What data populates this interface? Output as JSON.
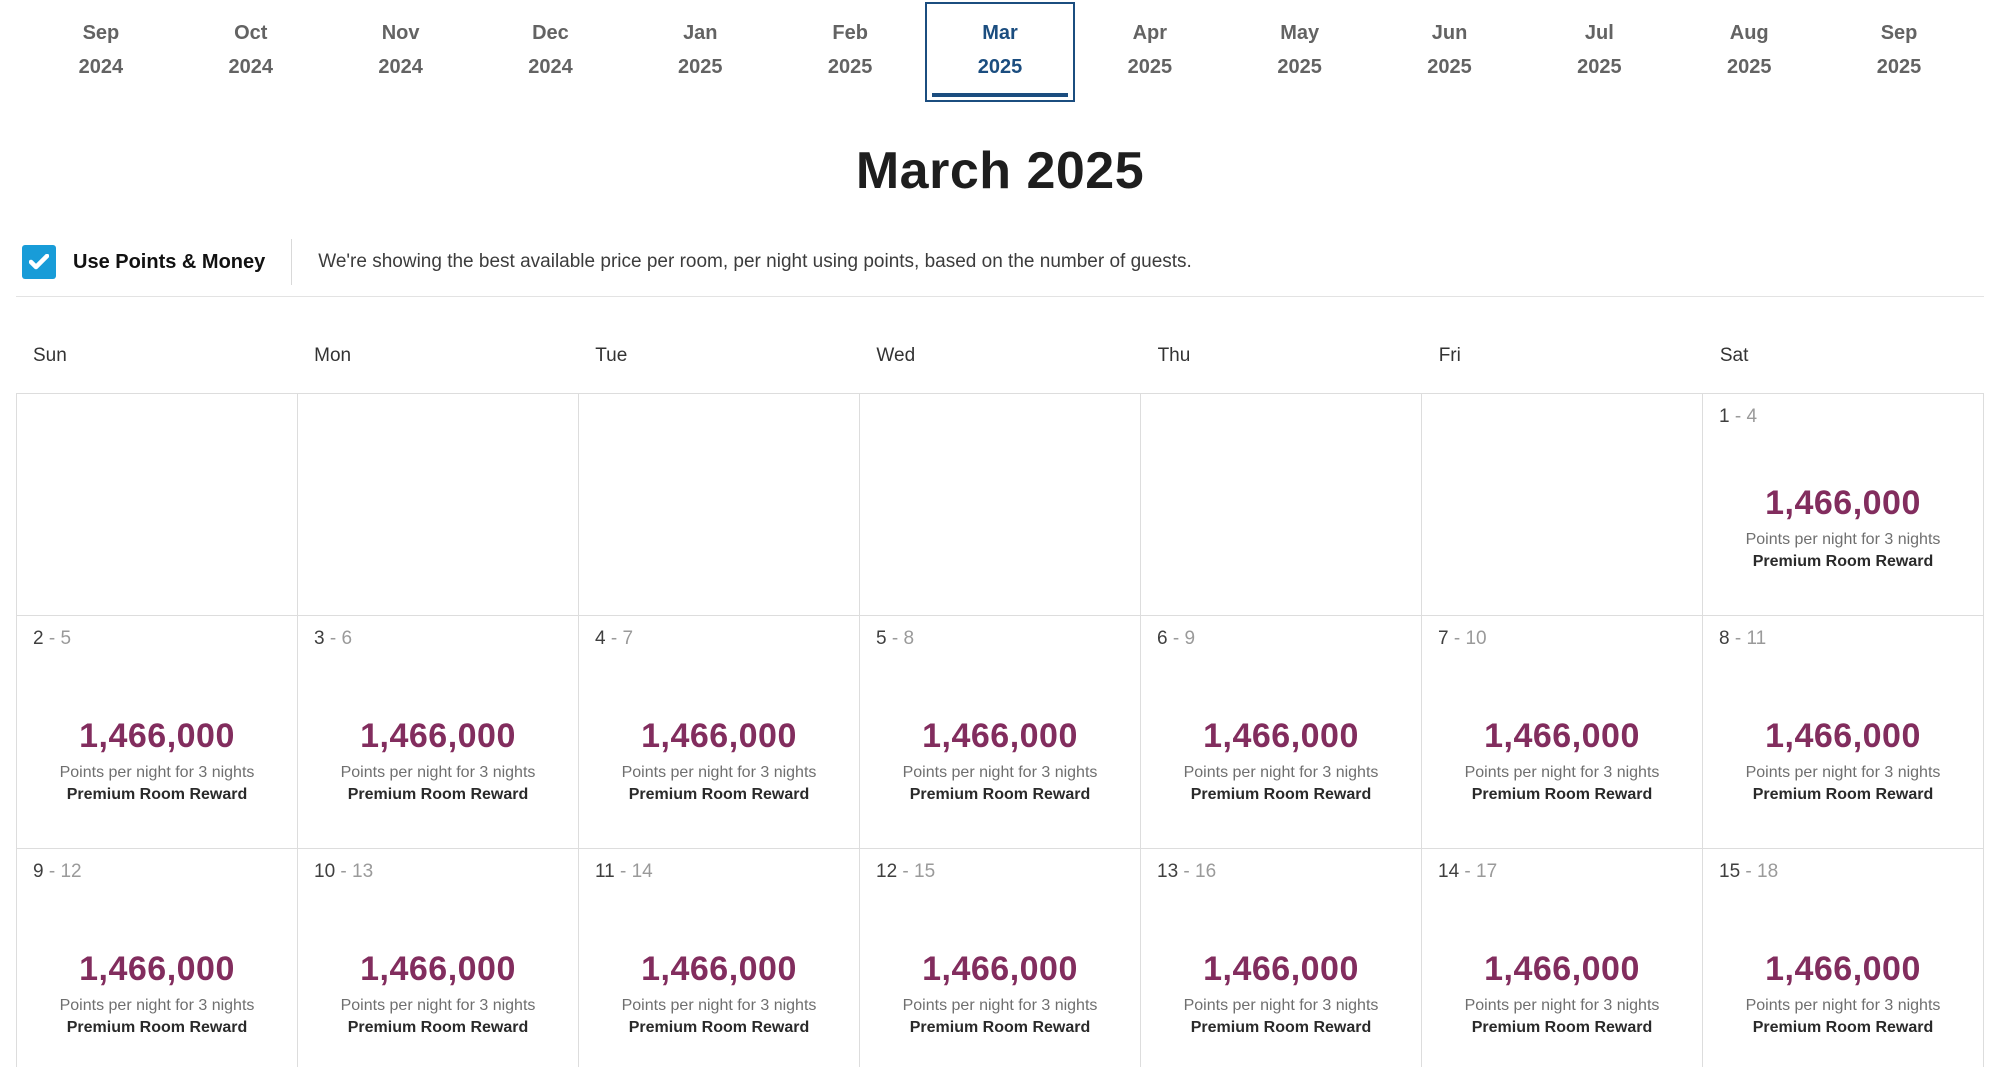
{
  "month_tabs": [
    {
      "month": "Sep",
      "year": "2024",
      "active": false
    },
    {
      "month": "Oct",
      "year": "2024",
      "active": false
    },
    {
      "month": "Nov",
      "year": "2024",
      "active": false
    },
    {
      "month": "Dec",
      "year": "2024",
      "active": false
    },
    {
      "month": "Jan",
      "year": "2025",
      "active": false
    },
    {
      "month": "Feb",
      "year": "2025",
      "active": false
    },
    {
      "month": "Mar",
      "year": "2025",
      "active": true
    },
    {
      "month": "Apr",
      "year": "2025",
      "active": false
    },
    {
      "month": "May",
      "year": "2025",
      "active": false
    },
    {
      "month": "Jun",
      "year": "2025",
      "active": false
    },
    {
      "month": "Jul",
      "year": "2025",
      "active": false
    },
    {
      "month": "Aug",
      "year": "2025",
      "active": false
    },
    {
      "month": "Sep",
      "year": "2025",
      "active": false
    }
  ],
  "title": "March 2025",
  "filter": {
    "checkbox_checked": true,
    "label": "Use Points & Money",
    "description": "We're showing the best available price per room, per night using points, based on the number of guests."
  },
  "calendar": {
    "day_headers": [
      "Sun",
      "Mon",
      "Tue",
      "Wed",
      "Thu",
      "Fri",
      "Sat"
    ],
    "price": "1,466,000",
    "points_label": "Points per night for 3 nights",
    "reward_label": "Premium Room Reward",
    "weeks": [
      [
        null,
        null,
        null,
        null,
        null,
        null,
        {
          "start": "1",
          "end": "4"
        }
      ],
      [
        {
          "start": "2",
          "end": "5"
        },
        {
          "start": "3",
          "end": "6"
        },
        {
          "start": "4",
          "end": "7"
        },
        {
          "start": "5",
          "end": "8"
        },
        {
          "start": "6",
          "end": "9"
        },
        {
          "start": "7",
          "end": "10"
        },
        {
          "start": "8",
          "end": "11"
        }
      ],
      [
        {
          "start": "9",
          "end": "12"
        },
        {
          "start": "10",
          "end": "13"
        },
        {
          "start": "11",
          "end": "14"
        },
        {
          "start": "12",
          "end": "15"
        },
        {
          "start": "13",
          "end": "16"
        },
        {
          "start": "14",
          "end": "17"
        },
        {
          "start": "15",
          "end": "18"
        }
      ]
    ]
  },
  "colors": {
    "accent_blue": "#189cd8",
    "active_tab_navy": "#1b4d7f",
    "price_plum": "#822d5e"
  }
}
